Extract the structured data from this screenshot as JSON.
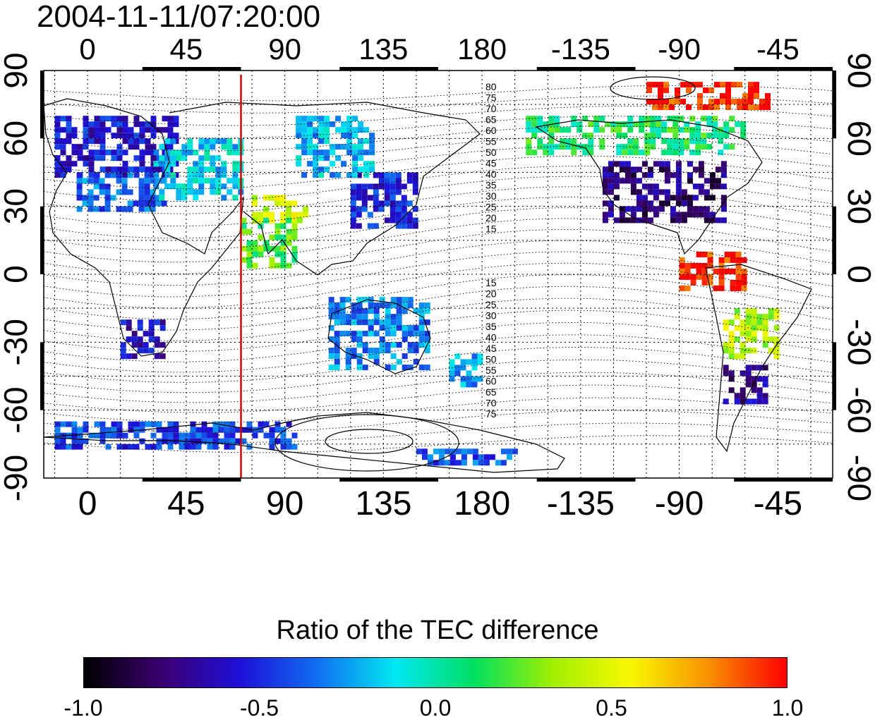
{
  "title": "2004-11-11/07:20:00",
  "map": {
    "lon_ticks_labels": [
      "0",
      "45",
      "90",
      "135",
      "180",
      "-135",
      "-90",
      "-45"
    ],
    "lat_ticks_labels": [
      "90",
      "60",
      "30",
      "0",
      "-30",
      "-60",
      "-90"
    ],
    "lon_ticks_deg": [
      0,
      45,
      90,
      135,
      180,
      225,
      270,
      315
    ],
    "lat_ticks_deg": [
      90,
      60,
      30,
      0,
      -30,
      -60,
      -90
    ],
    "lon_range": [
      -20,
      340
    ],
    "lat_range": [
      -90,
      90
    ],
    "grid": "dotted, every 15 degrees",
    "highlight_meridian_lon": 70,
    "highlight_meridian_color": "#cc0000",
    "contour_labels_north": [
      "80",
      "75",
      "70",
      "65",
      "60",
      "55",
      "50",
      "45",
      "40",
      "35",
      "30",
      "25",
      "20",
      "15"
    ],
    "contour_labels_south": [
      "15",
      "20",
      "25",
      "30",
      "35",
      "40",
      "45",
      "50",
      "55",
      "60",
      "65",
      "70",
      "75"
    ]
  },
  "colorbar": {
    "title": "Ratio of the TEC difference",
    "ticks": [
      "-1.0",
      "-0.5",
      "0.0",
      "0.5",
      "1.0"
    ],
    "range": [
      -1.0,
      1.0
    ],
    "colors": [
      "#000000",
      "#3a0070",
      "#1e10d8",
      "#1070f0",
      "#00e8f0",
      "#00e060",
      "#a0f000",
      "#f8f800",
      "#f89000",
      "#ff0000"
    ]
  },
  "tec_regions": [
    {
      "lon_min": -15,
      "lon_max": 40,
      "lat_min": 45,
      "lat_max": 70,
      "ratio": -0.55
    },
    {
      "lon_min": -5,
      "lon_max": 35,
      "lat_min": 30,
      "lat_max": 45,
      "ratio": -0.35
    },
    {
      "lon_min": 30,
      "lon_max": 70,
      "lat_min": 35,
      "lat_max": 60,
      "ratio": -0.15
    },
    {
      "lon_min": 70,
      "lon_max": 95,
      "lat_min": 5,
      "lat_max": 25,
      "ratio": 0.2
    },
    {
      "lon_min": 75,
      "lon_max": 100,
      "lat_min": 25,
      "lat_max": 35,
      "ratio": 0.45
    },
    {
      "lon_min": 120,
      "lon_max": 150,
      "lat_min": 22,
      "lat_max": 45,
      "ratio": -0.5
    },
    {
      "lon_min": 95,
      "lon_max": 130,
      "lat_min": 45,
      "lat_max": 70,
      "ratio": -0.2
    },
    {
      "lon_min": 15,
      "lon_max": 35,
      "lat_min": -35,
      "lat_max": -20,
      "ratio": -0.6
    },
    {
      "lon_min": 110,
      "lon_max": 155,
      "lat_min": -40,
      "lat_max": -10,
      "ratio": -0.3
    },
    {
      "lon_min": 165,
      "lon_max": 180,
      "lat_min": -48,
      "lat_max": -35,
      "ratio": -0.25
    },
    {
      "lon_min": 235,
      "lon_max": 290,
      "lat_min": 25,
      "lat_max": 50,
      "ratio": -0.75
    },
    {
      "lon_min": 200,
      "lon_max": 300,
      "lat_min": 55,
      "lat_max": 70,
      "ratio": 0.1
    },
    {
      "lon_min": 255,
      "lon_max": 310,
      "lat_min": 75,
      "lat_max": 85,
      "ratio": 0.95
    },
    {
      "lon_min": 270,
      "lon_max": 300,
      "lat_min": -5,
      "lat_max": 10,
      "ratio": 0.95
    },
    {
      "lon_min": 290,
      "lon_max": 315,
      "lat_min": -35,
      "lat_max": -15,
      "ratio": 0.4
    },
    {
      "lon_min": 290,
      "lon_max": 310,
      "lat_min": -55,
      "lat_max": -40,
      "ratio": -0.7
    },
    {
      "lon_min": -15,
      "lon_max": 95,
      "lat_min": -75,
      "lat_max": -65,
      "ratio": -0.45
    },
    {
      "lon_min": 150,
      "lon_max": 195,
      "lat_min": -82,
      "lat_max": -77,
      "ratio": -0.4
    }
  ]
}
